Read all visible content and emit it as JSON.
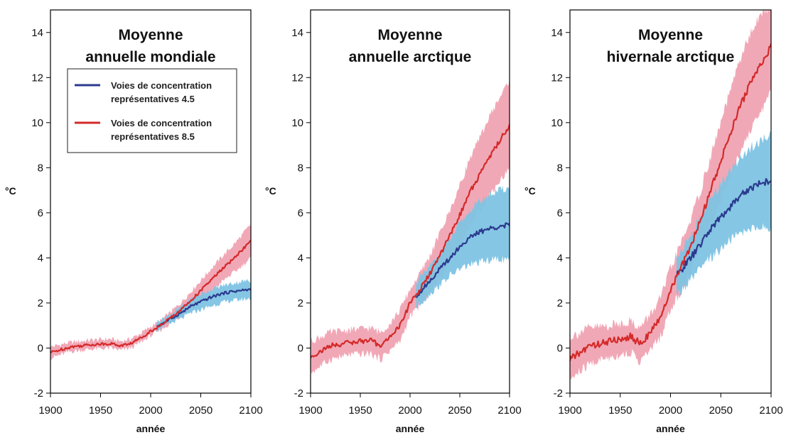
{
  "colors": {
    "rcp45_line": "#2b3a8f",
    "rcp45_band": "#7ec3e3",
    "rcp85_line": "#d42a2a",
    "rcp85_band": "#f0a3b2"
  },
  "chart_data": [
    {
      "type": "line",
      "title_lines": [
        "Moyenne",
        "annuelle mondiale"
      ],
      "xlabel": "année",
      "ylabel": "°C",
      "xlim": [
        1900,
        2100
      ],
      "ylim": [
        -2,
        15
      ],
      "xticks": [
        1900,
        1950,
        2000,
        2050,
        2100
      ],
      "yticks": [
        -2,
        0,
        2,
        4,
        6,
        8,
        10,
        12,
        14
      ],
      "legend": {
        "position": "upper-left",
        "entries": [
          {
            "series": "rcp45",
            "lines": [
              "Voies de concentration",
              "représentatives 4.5"
            ]
          },
          {
            "series": "rcp85",
            "lines": [
              "Voies de concentration",
              "représentatives 8.5"
            ]
          }
        ]
      },
      "series": [
        {
          "id": "rcp85",
          "x": [
            1900,
            1920,
            1940,
            1960,
            1970,
            1980,
            1990,
            2000,
            2010,
            2020,
            2030,
            2040,
            2050,
            2060,
            2070,
            2080,
            2090,
            2100
          ],
          "mean": [
            -0.2,
            0.05,
            0.15,
            0.2,
            0.1,
            0.2,
            0.45,
            0.75,
            1.0,
            1.35,
            1.7,
            2.1,
            2.55,
            3.0,
            3.45,
            3.85,
            4.3,
            4.75
          ],
          "lower": [
            -0.45,
            -0.15,
            -0.05,
            0.0,
            -0.1,
            0.0,
            0.25,
            0.55,
            0.8,
            1.1,
            1.4,
            1.7,
            2.1,
            2.5,
            2.9,
            3.25,
            3.6,
            4.0
          ],
          "upper": [
            0.05,
            0.25,
            0.35,
            0.4,
            0.3,
            0.4,
            0.65,
            0.95,
            1.2,
            1.6,
            2.0,
            2.5,
            3.0,
            3.5,
            4.0,
            4.45,
            4.95,
            5.5
          ]
        },
        {
          "id": "rcp45",
          "x": [
            2006,
            2020,
            2030,
            2040,
            2050,
            2060,
            2070,
            2080,
            2090,
            2100
          ],
          "mean": [
            0.95,
            1.3,
            1.55,
            1.85,
            2.05,
            2.25,
            2.4,
            2.5,
            2.55,
            2.6
          ],
          "lower": [
            0.8,
            1.1,
            1.3,
            1.55,
            1.7,
            1.85,
            2.0,
            2.1,
            2.15,
            2.2
          ],
          "upper": [
            1.15,
            1.5,
            1.8,
            2.15,
            2.4,
            2.6,
            2.75,
            2.85,
            2.95,
            3.0
          ]
        }
      ]
    },
    {
      "type": "line",
      "title_lines": [
        "Moyenne",
        "annuelle arctique"
      ],
      "xlabel": "année",
      "ylabel": "°C",
      "xlim": [
        1900,
        2100
      ],
      "ylim": [
        -2,
        15
      ],
      "xticks": [
        1900,
        1950,
        2000,
        2050,
        2100
      ],
      "yticks": [
        -2,
        0,
        2,
        4,
        6,
        8,
        10,
        12,
        14
      ],
      "series": [
        {
          "id": "rcp85",
          "x": [
            1900,
            1920,
            1940,
            1960,
            1970,
            1980,
            1990,
            2000,
            2010,
            2020,
            2030,
            2040,
            2050,
            2060,
            2070,
            2080,
            2090,
            2100
          ],
          "mean": [
            -0.4,
            0.1,
            0.25,
            0.35,
            0.1,
            0.5,
            1.0,
            2.0,
            2.6,
            3.3,
            4.1,
            5.0,
            5.9,
            6.9,
            7.7,
            8.5,
            9.2,
            9.9
          ],
          "lower": [
            -1.1,
            -0.5,
            -0.3,
            -0.25,
            -0.5,
            -0.1,
            0.3,
            1.4,
            1.9,
            2.5,
            3.1,
            3.9,
            4.6,
            5.4,
            6.1,
            6.8,
            7.4,
            8.0
          ],
          "upper": [
            0.3,
            0.7,
            0.8,
            0.9,
            0.7,
            1.1,
            1.7,
            2.6,
            3.3,
            4.1,
            5.1,
            6.1,
            7.2,
            8.4,
            9.3,
            10.3,
            11.1,
            11.9
          ]
        },
        {
          "id": "rcp45",
          "x": [
            2006,
            2020,
            2030,
            2040,
            2050,
            2060,
            2070,
            2080,
            2090,
            2100
          ],
          "mean": [
            2.3,
            3.0,
            3.5,
            4.0,
            4.5,
            4.9,
            5.15,
            5.3,
            5.4,
            5.45
          ],
          "lower": [
            1.8,
            2.4,
            2.8,
            3.2,
            3.5,
            3.7,
            3.8,
            3.9,
            3.95,
            3.9
          ],
          "upper": [
            2.9,
            3.6,
            4.2,
            4.8,
            5.5,
            6.1,
            6.5,
            6.8,
            7.0,
            7.1
          ]
        }
      ]
    },
    {
      "type": "line",
      "title_lines": [
        "Moyenne",
        "hivernale arctique"
      ],
      "xlabel": "année",
      "ylabel": "°C",
      "xlim": [
        1900,
        2100
      ],
      "ylim": [
        -2,
        15
      ],
      "xticks": [
        1900,
        1950,
        2000,
        2050,
        2100
      ],
      "yticks": [
        -2,
        0,
        2,
        4,
        6,
        8,
        10,
        12,
        14
      ],
      "series": [
        {
          "id": "rcp85",
          "x": [
            1900,
            1920,
            1940,
            1960,
            1970,
            1980,
            1990,
            2000,
            2010,
            2020,
            2030,
            2040,
            2050,
            2060,
            2070,
            2080,
            2090,
            2100
          ],
          "mean": [
            -0.5,
            0.1,
            0.3,
            0.5,
            0.2,
            0.7,
            1.3,
            2.6,
            3.5,
            4.5,
            5.7,
            7.0,
            8.3,
            9.6,
            10.8,
            11.8,
            12.6,
            13.4
          ],
          "lower": [
            -1.4,
            -0.7,
            -0.4,
            -0.2,
            -0.6,
            -0.1,
            0.5,
            1.7,
            2.5,
            3.4,
            4.4,
            5.5,
            6.6,
            7.7,
            8.8,
            9.7,
            10.5,
            11.4
          ],
          "upper": [
            0.5,
            0.9,
            1.0,
            1.2,
            0.9,
            1.5,
            2.2,
            3.5,
            4.6,
            5.7,
            7.0,
            8.5,
            10.0,
            11.5,
            12.9,
            14.0,
            14.8,
            15.2
          ]
        },
        {
          "id": "rcp45",
          "x": [
            2006,
            2020,
            2030,
            2040,
            2050,
            2060,
            2070,
            2080,
            2090,
            2100
          ],
          "mean": [
            3.2,
            4.0,
            4.6,
            5.3,
            5.8,
            6.3,
            6.8,
            7.1,
            7.35,
            7.4
          ],
          "lower": [
            2.3,
            3.0,
            3.5,
            4.0,
            4.4,
            4.8,
            5.1,
            5.3,
            5.4,
            5.3
          ],
          "upper": [
            4.0,
            5.0,
            5.8,
            6.6,
            7.3,
            7.9,
            8.5,
            8.9,
            9.2,
            9.5
          ]
        }
      ]
    }
  ]
}
